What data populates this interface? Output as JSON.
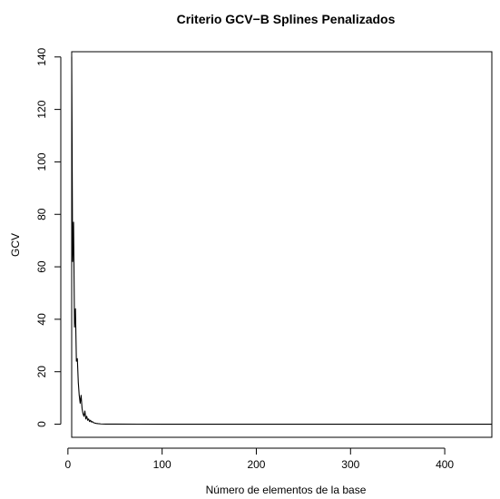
{
  "chart_data": {
    "type": "line",
    "title": "Criterio GCV−B Splines Penalizados",
    "xlabel": "Número de elementos de la base",
    "ylabel": "GCV",
    "xlim": [
      4,
      450
    ],
    "ylim": [
      -5,
      142
    ],
    "x_ticks": [
      0,
      100,
      200,
      300,
      400
    ],
    "y_ticks": [
      0,
      20,
      40,
      60,
      80,
      100,
      120,
      140
    ],
    "grid": false,
    "legend": "none",
    "line_color": "#000000",
    "series": [
      {
        "x": [
          4,
          5,
          6,
          7,
          8,
          9,
          10,
          11,
          12,
          13,
          14,
          15,
          16,
          17,
          18,
          19,
          20,
          21,
          22,
          23,
          24,
          25,
          26,
          27,
          28,
          30,
          32,
          35,
          40,
          50,
          75,
          100,
          150,
          200,
          250,
          300,
          350,
          400,
          450
        ],
        "y": [
          140,
          62,
          77,
          37,
          44,
          24,
          25,
          16,
          11,
          8,
          11,
          6,
          4,
          3,
          5,
          2,
          3,
          1.5,
          2,
          1,
          1.5,
          0.8,
          1,
          0.6,
          0.5,
          0.3,
          0.2,
          0.1,
          0.05,
          0.03,
          0.02,
          0.01,
          0.01,
          0.01,
          0.01,
          0.01,
          0.01,
          0.01,
          0.01
        ]
      }
    ]
  }
}
